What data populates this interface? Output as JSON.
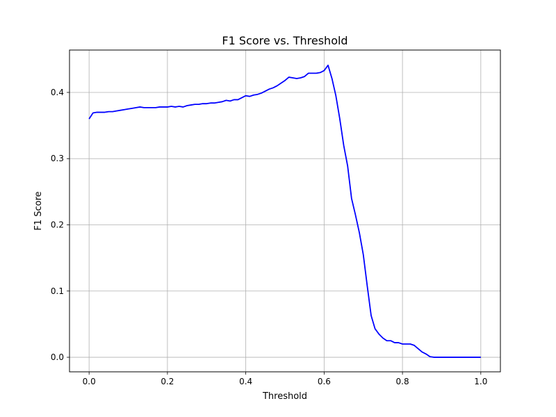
{
  "chart_data": {
    "type": "line",
    "title": "F1 Score vs. Threshold",
    "xlabel": "Threshold",
    "ylabel": "F1 Score",
    "xlim": [
      -0.05,
      1.05
    ],
    "ylim": [
      -0.022,
      0.464
    ],
    "xticks": [
      0.0,
      0.2,
      0.4,
      0.6,
      0.8,
      1.0
    ],
    "xtick_labels": [
      "0.0",
      "0.2",
      "0.4",
      "0.6",
      "0.8",
      "1.0"
    ],
    "yticks": [
      0.0,
      0.1,
      0.2,
      0.3,
      0.4
    ],
    "ytick_labels": [
      "0.0",
      "0.1",
      "0.2",
      "0.3",
      "0.4"
    ],
    "grid": true,
    "series": [
      {
        "color": "#0000ff",
        "x": [
          0.0,
          0.01,
          0.02,
          0.03,
          0.04,
          0.05,
          0.06,
          0.07,
          0.08,
          0.09,
          0.1,
          0.11,
          0.12,
          0.13,
          0.14,
          0.15,
          0.16,
          0.17,
          0.18,
          0.19,
          0.2,
          0.21,
          0.22,
          0.23,
          0.24,
          0.25,
          0.26,
          0.27,
          0.28,
          0.29,
          0.3,
          0.31,
          0.32,
          0.33,
          0.34,
          0.35,
          0.36,
          0.37,
          0.38,
          0.39,
          0.4,
          0.41,
          0.42,
          0.43,
          0.44,
          0.45,
          0.46,
          0.47,
          0.48,
          0.49,
          0.5,
          0.51,
          0.52,
          0.53,
          0.54,
          0.55,
          0.56,
          0.57,
          0.58,
          0.59,
          0.6,
          0.61,
          0.62,
          0.63,
          0.64,
          0.65,
          0.66,
          0.67,
          0.68,
          0.69,
          0.7,
          0.71,
          0.72,
          0.73,
          0.74,
          0.75,
          0.76,
          0.77,
          0.78,
          0.79,
          0.8,
          0.81,
          0.82,
          0.83,
          0.84,
          0.85,
          0.86,
          0.87,
          0.88,
          0.89,
          0.9,
          0.92,
          0.94,
          0.96,
          0.98,
          1.0
        ],
        "y": [
          0.36,
          0.369,
          0.37,
          0.37,
          0.37,
          0.371,
          0.371,
          0.372,
          0.373,
          0.374,
          0.375,
          0.376,
          0.377,
          0.378,
          0.377,
          0.377,
          0.377,
          0.377,
          0.378,
          0.378,
          0.378,
          0.379,
          0.378,
          0.379,
          0.378,
          0.38,
          0.381,
          0.382,
          0.382,
          0.383,
          0.383,
          0.384,
          0.384,
          0.385,
          0.386,
          0.388,
          0.387,
          0.389,
          0.389,
          0.392,
          0.395,
          0.394,
          0.396,
          0.397,
          0.399,
          0.402,
          0.405,
          0.407,
          0.41,
          0.414,
          0.418,
          0.423,
          0.422,
          0.421,
          0.422,
          0.424,
          0.429,
          0.429,
          0.429,
          0.43,
          0.433,
          0.441,
          0.421,
          0.395,
          0.36,
          0.32,
          0.289,
          0.24,
          0.215,
          0.188,
          0.155,
          0.108,
          0.063,
          0.043,
          0.035,
          0.029,
          0.025,
          0.025,
          0.022,
          0.022,
          0.02,
          0.02,
          0.02,
          0.018,
          0.013,
          0.008,
          0.005,
          0.001,
          0.0,
          0.0,
          0.0,
          0.0,
          0.0,
          0.0,
          0.0,
          0.0
        ]
      }
    ]
  }
}
